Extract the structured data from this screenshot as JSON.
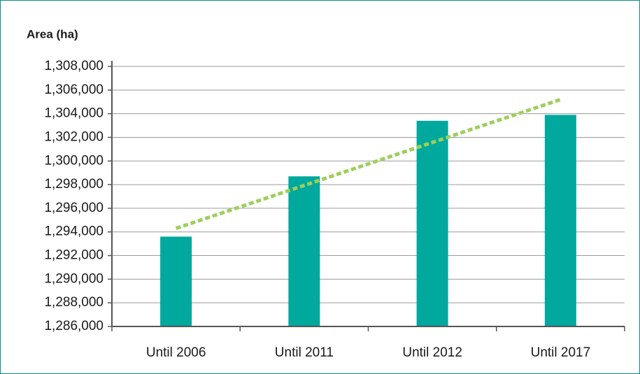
{
  "chart_data": {
    "type": "bar",
    "y_axis_label": "Area (ha)",
    "categories": [
      "Until 2006",
      "Until 2011",
      "Until 2012",
      "Until 2017"
    ],
    "values": [
      1293600,
      1298700,
      1303400,
      1303900
    ],
    "color": "#00a89d",
    "trendline": {
      "values": [
        1294300,
        1297930,
        1301570,
        1305200
      ],
      "color": "#9dcf5a",
      "style": "dotted"
    },
    "ylim": [
      1286000,
      1308000
    ],
    "yticks": [
      {
        "value": 1286000,
        "label": "1,286,000"
      },
      {
        "value": 1288000,
        "label": "1,288,000"
      },
      {
        "value": 1290000,
        "label": "1,290,000"
      },
      {
        "value": 1292000,
        "label": "1,292,000"
      },
      {
        "value": 1294000,
        "label": "1,294,000"
      },
      {
        "value": 1296000,
        "label": "1,296,000"
      },
      {
        "value": 1298000,
        "label": "1,298,000"
      },
      {
        "value": 1300000,
        "label": "1,300,000"
      },
      {
        "value": 1302000,
        "label": "1,302,000"
      },
      {
        "value": 1304000,
        "label": "1,304,000"
      },
      {
        "value": 1306000,
        "label": "1,306,000"
      },
      {
        "value": 1308000,
        "label": "1,308,000"
      }
    ],
    "grid": true
  }
}
